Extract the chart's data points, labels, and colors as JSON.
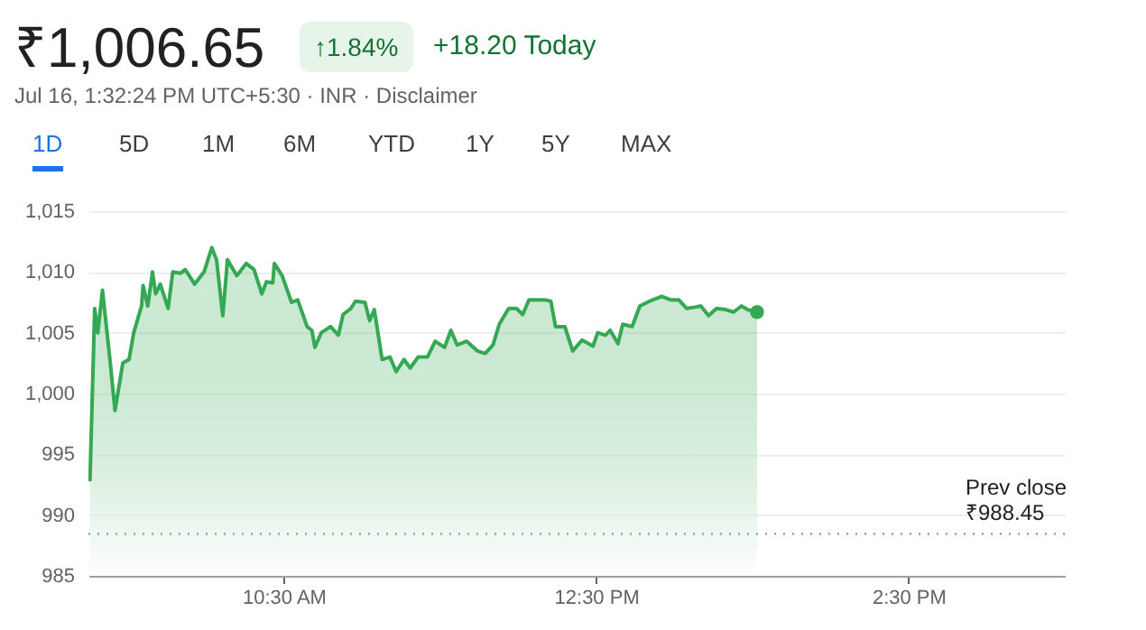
{
  "chart_data": {
    "type": "area",
    "title": "₹1,006.65",
    "subtitle": "Jul 16, 1:32:24 PM UTC+5:30 · INR · Disclaimer",
    "annotations": [
      "↑1.84%",
      "+18.20 Today",
      "1D",
      "5D",
      "1M",
      "6M",
      "YTD",
      "1Y",
      "5Y",
      "MAX"
    ],
    "xlim": [
      9.25,
      15.5
    ],
    "xticks": [
      {
        "value": 10.5,
        "label": "10:30 AM"
      },
      {
        "value": 12.5,
        "label": "12:30 PM"
      },
      {
        "value": 14.5,
        "label": "2:30 PM"
      }
    ],
    "ylim": [
      985,
      1015
    ],
    "yticks": [
      985,
      990,
      995,
      {
        "value": 1000,
        "label": "1,000"
      },
      {
        "value": 1005,
        "label": "1,005"
      },
      {
        "value": 1010,
        "label": "1,010"
      },
      {
        "value": 1015,
        "label": "1,015"
      }
    ],
    "grid": "y",
    "ref_lines": [
      {
        "axis": "y",
        "value": 988.45,
        "label": "Prev close\n₹988.45",
        "color": "#9aa0a6",
        "line_style": "dotted"
      }
    ],
    "series": [
      {
        "color": "#34a853",
        "x": [
          9.26,
          9.29,
          9.31,
          9.34,
          9.39,
          9.42,
          9.47,
          9.51,
          9.54,
          9.59,
          9.6,
          9.63,
          9.66,
          9.68,
          9.71,
          9.76,
          9.79,
          9.84,
          9.87,
          9.93,
          9.99,
          10.04,
          10.07,
          10.11,
          10.14,
          10.2,
          10.26,
          10.31,
          10.36,
          10.39,
          10.43,
          10.44,
          10.49,
          10.55,
          10.59,
          10.65,
          10.68,
          10.7,
          10.74,
          10.8,
          10.85,
          10.88,
          10.93,
          10.96,
          11.02,
          11.05,
          11.08,
          11.13,
          11.18,
          11.22,
          11.27,
          11.31,
          11.36,
          11.42,
          11.47,
          11.53,
          11.57,
          11.61,
          11.67,
          11.74,
          11.79,
          11.84,
          11.88,
          11.94,
          11.99,
          12.03,
          12.07,
          12.13,
          12.17,
          12.21,
          12.24,
          12.3,
          12.35,
          12.41,
          12.48,
          12.51,
          12.56,
          12.59,
          12.64,
          12.67,
          12.73,
          12.78,
          12.86,
          12.92,
          12.98,
          13.03,
          13.08,
          13.13,
          13.17,
          13.22,
          13.27,
          13.33,
          13.38,
          13.43,
          13.47,
          13.53
        ],
        "values": [
          992.9,
          1007,
          1005,
          1008.5,
          1002.5,
          998.6,
          1002.5,
          1002.8,
          1005,
          1007.2,
          1008.9,
          1007.2,
          1010,
          1008.2,
          1009,
          1007,
          1010,
          1009.9,
          1010.2,
          1009,
          1010,
          1012,
          1011,
          1006.4,
          1011,
          1009.7,
          1010.7,
          1010.2,
          1008.2,
          1009.2,
          1009.1,
          1010.7,
          1009.7,
          1007.5,
          1007.7,
          1005.5,
          1005.2,
          1003.8,
          1005,
          1005.5,
          1004.8,
          1006.5,
          1007,
          1007.6,
          1007.5,
          1006,
          1006.9,
          1002.8,
          1003,
          1001.8,
          1002.8,
          1002.1,
          1003,
          1003,
          1004.3,
          1003.8,
          1005.2,
          1004,
          1004.3,
          1003.5,
          1003.3,
          1004,
          1005.7,
          1007,
          1007,
          1006.5,
          1007.7,
          1007.7,
          1007.7,
          1007.6,
          1005.5,
          1005.5,
          1003.5,
          1004.4,
          1003.9,
          1005,
          1004.8,
          1005.2,
          1004.1,
          1005.7,
          1005.5,
          1007.2,
          1007.7,
          1008,
          1007.7,
          1007.7,
          1007,
          1007.1,
          1007.2,
          1006.4,
          1007,
          1006.9,
          1006.7,
          1007.2,
          1006.9,
          1006.7
        ]
      },
      {
        "type": "scatter",
        "color": "#34a853",
        "x": [
          13.53
        ],
        "values": [
          1006.7
        ],
        "marker": "circle"
      }
    ]
  }
}
